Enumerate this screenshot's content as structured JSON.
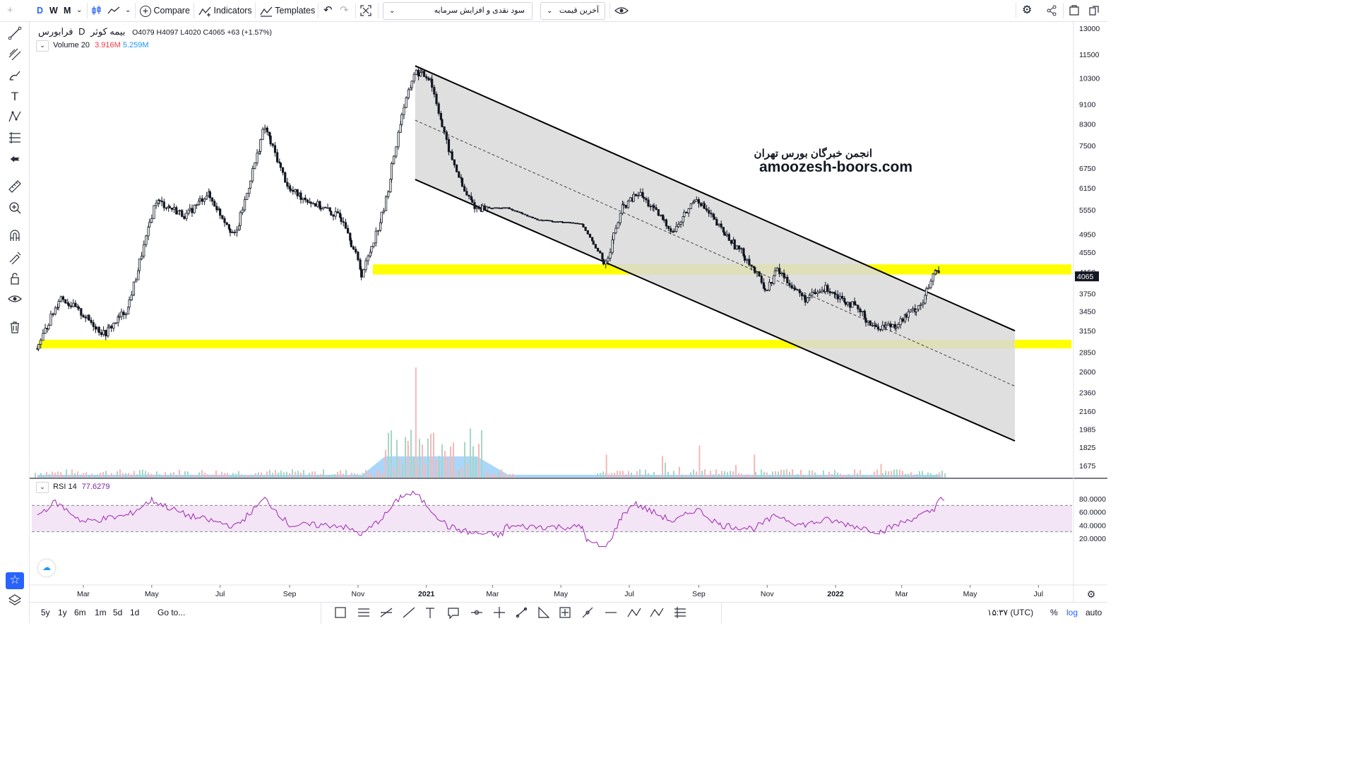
{
  "toolbar": {
    "intervals": [
      "D",
      "W",
      "M"
    ],
    "active_interval": "D",
    "compare_label": "Compare",
    "indicators_label": "Indicators",
    "templates_label": "Templates",
    "symbol_dropdown": "سود نقدی و افزایش سرمایه",
    "price_dropdown": "آخرین قیمت"
  },
  "legend": {
    "exchange": "فرابورس",
    "interval": "D",
    "symbol": "بیمه کوثر",
    "o_label": "O",
    "o_value": "4079",
    "h_label": "H",
    "h_value": "4097",
    "l_label": "L",
    "l_value": "4020",
    "c_label": "C",
    "c_value": "4065",
    "change": "+63 (+1.57%)",
    "volume_label": "Volume 20",
    "volume_value": "3.916M",
    "volume_ma": "5.259M",
    "rsi_label": "RSI 14",
    "rsi_value": "77.6279"
  },
  "watermark": {
    "line1": "انجمن خبرگان بورس تهران",
    "line2": "amoozesh-boors.com"
  },
  "bottom": {
    "ranges": [
      "5y",
      "1y",
      "6m",
      "1m",
      "5d",
      "1d"
    ],
    "goto": "Go to...",
    "clock": "۱۵:۳۷ (UTC)",
    "pct": "%",
    "log": "log",
    "auto": "auto"
  },
  "colors": {
    "up": "#131722",
    "down": "#131722",
    "zone": "#ffff00",
    "channel_fill": "#d9d9d9",
    "rsi_line": "#9c27b0",
    "rsi_band": "#f3e5f5",
    "vol_up": "#a5d6c6",
    "vol_down": "#f7b7b7",
    "vol_ma": "#64b5f6",
    "accent": "#2962ff",
    "last_price_bg": "#131722"
  },
  "chart_data": {
    "type": "candlestick",
    "title": "بیمه کوثر",
    "price_axis": {
      "scale": "log",
      "ticks": [
        13000,
        11500,
        10300,
        9100,
        8300,
        7500,
        6750,
        6150,
        5550,
        4950,
        4550,
        4150,
        3750,
        3450,
        3150,
        2850,
        2600,
        2360,
        2160,
        1985,
        1825,
        1675
      ],
      "last_price": 4065,
      "range": [
        1600,
        13300
      ]
    },
    "time_axis": {
      "labels": [
        "Mar",
        "May",
        "Jul",
        "Sep",
        "Nov",
        "2021",
        "Mar",
        "May",
        "Jul",
        "Sep",
        "Nov",
        "2022",
        "Mar",
        "May",
        "Jul"
      ]
    },
    "price_path": [
      {
        "t": "2020-01-20",
        "p": 2900
      },
      {
        "t": "2020-02-10",
        "p": 3700
      },
      {
        "t": "2020-03-01",
        "p": 3400
      },
      {
        "t": "2020-03-20",
        "p": 3100
      },
      {
        "t": "2020-04-10",
        "p": 3500
      },
      {
        "t": "2020-05-05",
        "p": 5800
      },
      {
        "t": "2020-06-01",
        "p": 5400
      },
      {
        "t": "2020-06-20",
        "p": 6000
      },
      {
        "t": "2020-07-15",
        "p": 4900
      },
      {
        "t": "2020-08-10",
        "p": 8200
      },
      {
        "t": "2020-09-01",
        "p": 6100
      },
      {
        "t": "2020-10-01",
        "p": 5600
      },
      {
        "t": "2020-10-20",
        "p": 5300
      },
      {
        "t": "2020-11-05",
        "p": 4100
      },
      {
        "t": "2020-11-25",
        "p": 5600
      },
      {
        "t": "2020-12-10",
        "p": 8600
      },
      {
        "t": "2020-12-22",
        "p": 10600
      },
      {
        "t": "2021-01-05",
        "p": 10300
      },
      {
        "t": "2021-01-20",
        "p": 7500
      },
      {
        "t": "2021-02-05",
        "p": 6000
      },
      {
        "t": "2021-02-15",
        "p": 5600
      },
      {
        "t": "2021-03-15",
        "p": 5600
      },
      {
        "t": "2021-04-10",
        "p": 5300
      },
      {
        "t": "2021-05-20",
        "p": 5200
      },
      {
        "t": "2021-06-10",
        "p": 4300
      },
      {
        "t": "2021-06-25",
        "p": 5600
      },
      {
        "t": "2021-07-10",
        "p": 6000
      },
      {
        "t": "2021-08-10",
        "p": 5000
      },
      {
        "t": "2021-08-30",
        "p": 5900
      },
      {
        "t": "2021-09-20",
        "p": 5100
      },
      {
        "t": "2021-10-15",
        "p": 4400
      },
      {
        "t": "2021-11-01",
        "p": 3800
      },
      {
        "t": "2021-11-10",
        "p": 4200
      },
      {
        "t": "2021-12-05",
        "p": 3650
      },
      {
        "t": "2021-12-25",
        "p": 3850
      },
      {
        "t": "2022-01-20",
        "p": 3500
      },
      {
        "t": "2022-02-05",
        "p": 3200
      },
      {
        "t": "2022-02-25",
        "p": 3250
      },
      {
        "t": "2022-03-20",
        "p": 3600
      },
      {
        "t": "2022-04-01",
        "p": 4200
      },
      {
        "t": "2022-04-05",
        "p": 4065
      }
    ],
    "horizontal_zones": [
      {
        "from": 4100,
        "to": 4300
      },
      {
        "from": 2900,
        "to": 3020
      }
    ],
    "channel": {
      "upper": [
        {
          "t": "2020-12-22",
          "p": 10900
        },
        {
          "t": "2022-06-10",
          "p": 3150
        }
      ],
      "lower": [
        {
          "t": "2020-12-22",
          "p": 6400
        },
        {
          "t": "2022-06-10",
          "p": 1880
        }
      ],
      "median": [
        {
          "t": "2020-12-22",
          "p": 8450
        },
        {
          "t": "2022-06-10",
          "p": 2430
        }
      ]
    },
    "rsi": {
      "ticks": [
        80,
        60,
        40,
        20
      ],
      "bands": [
        70,
        30
      ],
      "range": [
        0,
        95
      ],
      "values": [
        {
          "t": "2020-01-20",
          "v": 55
        },
        {
          "t": "2020-02-05",
          "v": 75
        },
        {
          "t": "2020-03-01",
          "v": 45
        },
        {
          "t": "2020-04-10",
          "v": 55
        },
        {
          "t": "2020-05-01",
          "v": 78
        },
        {
          "t": "2020-06-01",
          "v": 55
        },
        {
          "t": "2020-07-15",
          "v": 38
        },
        {
          "t": "2020-08-10",
          "v": 80
        },
        {
          "t": "2020-09-01",
          "v": 40
        },
        {
          "t": "2020-10-15",
          "v": 40
        },
        {
          "t": "2020-11-05",
          "v": 26
        },
        {
          "t": "2020-11-25",
          "v": 55
        },
        {
          "t": "2020-12-10",
          "v": 85
        },
        {
          "t": "2020-12-22",
          "v": 88
        },
        {
          "t": "2021-01-20",
          "v": 38
        },
        {
          "t": "2021-02-10",
          "v": 28
        },
        {
          "t": "2021-03-10",
          "v": 25
        },
        {
          "t": "2021-03-12",
          "v": 38
        },
        {
          "t": "2021-05-20",
          "v": 37
        },
        {
          "t": "2021-05-25",
          "v": 15
        },
        {
          "t": "2021-06-10",
          "v": 5
        },
        {
          "t": "2021-06-25",
          "v": 55
        },
        {
          "t": "2021-07-05",
          "v": 73
        },
        {
          "t": "2021-08-10",
          "v": 45
        },
        {
          "t": "2021-08-30",
          "v": 65
        },
        {
          "t": "2021-09-20",
          "v": 40
        },
        {
          "t": "2021-10-20",
          "v": 35
        },
        {
          "t": "2021-11-10",
          "v": 55
        },
        {
          "t": "2021-12-01",
          "v": 40
        },
        {
          "t": "2021-12-25",
          "v": 48
        },
        {
          "t": "2022-01-20",
          "v": 38
        },
        {
          "t": "2022-02-10",
          "v": 30
        },
        {
          "t": "2022-03-10",
          "v": 50
        },
        {
          "t": "2022-03-30",
          "v": 62
        },
        {
          "t": "2022-04-03",
          "v": 84
        },
        {
          "t": "2022-04-08",
          "v": 78
        }
      ]
    },
    "volume": {
      "spikes": [
        {
          "t": "2020-12-22",
          "v": 12
        },
        {
          "t": "2020-12-15",
          "v": 4
        },
        {
          "t": "2021-06-10",
          "v": 2.5
        },
        {
          "t": "2021-09-01",
          "v": 3.5
        },
        {
          "t": "2021-10-20",
          "v": 2.5
        },
        {
          "t": "2022-02-10",
          "v": 1.5
        }
      ]
    }
  }
}
